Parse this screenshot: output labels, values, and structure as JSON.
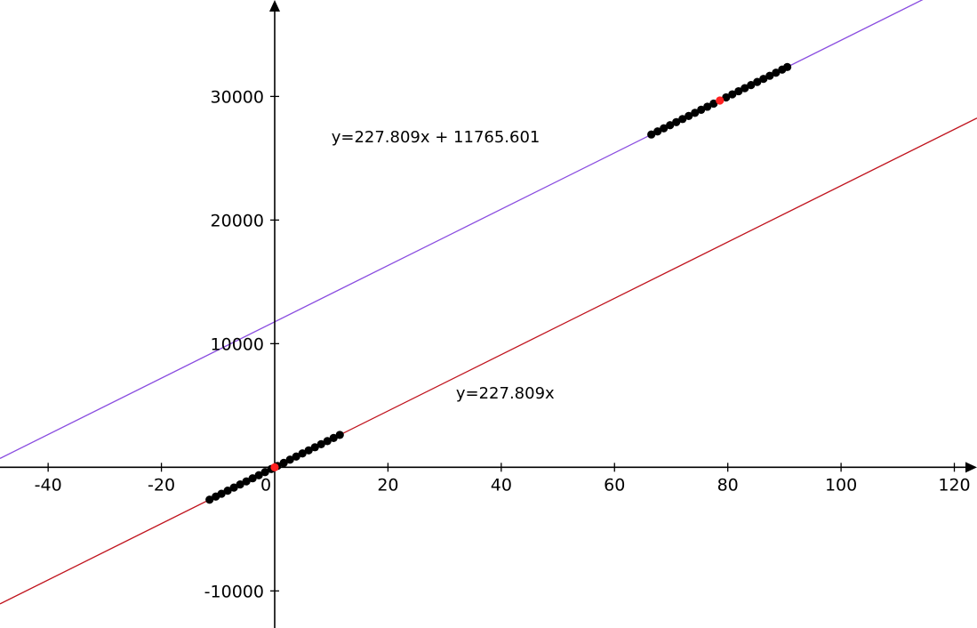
{
  "chart_data": {
    "type": "scatter",
    "title": "",
    "xlabel": "",
    "ylabel": "",
    "xlim": [
      -48.5,
      124
    ],
    "ylim": [
      -13000,
      37800
    ],
    "grid": false,
    "x_ticks": [
      -40,
      -20,
      0,
      20,
      40,
      60,
      80,
      100,
      120
    ],
    "x_tick_labels": [
      "-40",
      "-20",
      "0",
      "20",
      "40",
      "60",
      "80",
      "100",
      "120"
    ],
    "y_ticks": [
      -10000,
      10000,
      20000,
      30000
    ],
    "y_tick_labels": [
      "-10000",
      "10000",
      "20000",
      "30000"
    ],
    "lines": [
      {
        "equation": "y=227.809x + 11765.601",
        "slope": 227.809,
        "intercept": 11765.601,
        "color": "#8a4de0"
      },
      {
        "equation": "y=227.809x",
        "slope": 227.809,
        "intercept": 0,
        "color": "#c0141e"
      }
    ],
    "series": [
      {
        "color": "#000000",
        "x": [
          -11.5,
          -10.4,
          -9.4,
          -8.3,
          -7.2,
          -6.1,
          -5.0,
          -3.9,
          -2.8,
          -1.7,
          -0.6,
          0.5,
          1.6,
          2.7,
          3.8,
          4.9,
          6.0,
          7.1,
          8.2,
          9.3,
          10.4,
          11.5
        ],
        "y": [
          -2620,
          -2370,
          -2140,
          -1890,
          -1640,
          -1390,
          -1140,
          -890,
          -640,
          -390,
          -140,
          110,
          360,
          620,
          870,
          1120,
          1370,
          1620,
          1870,
          2120,
          2370,
          2620
        ]
      },
      {
        "color": "#000000",
        "x": [
          66.5,
          67.6,
          68.7,
          69.8,
          70.9,
          72.0,
          73.1,
          74.2,
          75.3,
          76.4,
          77.5,
          79.7,
          80.8,
          81.9,
          83.0,
          84.1,
          85.2,
          86.3,
          87.4,
          88.5,
          89.6,
          90.5
        ],
        "y": [
          26920,
          27170,
          27420,
          27670,
          27920,
          28170,
          28420,
          28670,
          28920,
          29170,
          29420,
          29920,
          30170,
          30420,
          30670,
          30920,
          31170,
          31420,
          31670,
          31920,
          32170,
          32380
        ]
      },
      {
        "color": "#ff2020",
        "x": [
          0,
          78.6
        ],
        "y": [
          0,
          29670
        ]
      }
    ]
  }
}
